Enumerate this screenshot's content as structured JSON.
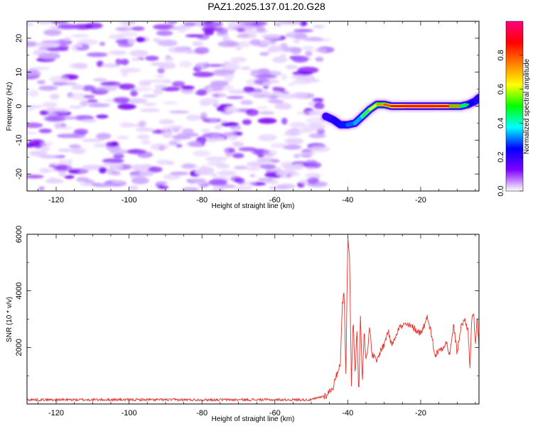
{
  "title": "PAZ1.2025.137.01.20.G28",
  "chart_data": [
    {
      "type": "heatmap",
      "xlabel": "Height of straight line (km)",
      "ylabel": "Frequency (Hz)",
      "xlim": [
        -128,
        -4
      ],
      "ylim": [
        -25,
        25
      ],
      "x_ticks": [
        -120,
        -100,
        -80,
        -60,
        -40,
        -20
      ],
      "y_ticks": [
        -20,
        -10,
        0,
        10,
        20
      ],
      "colorbar": {
        "label": "Normalized spectral amplitude",
        "range": [
          0,
          1
        ],
        "ticks": [
          0.0,
          0.2,
          0.4,
          0.6,
          0.8
        ],
        "colormap": [
          "#ffffff",
          "#7f00ff",
          "#0000ff",
          "#00ffff",
          "#00ff00",
          "#ffff00",
          "#ff8000",
          "#ff0000",
          "#ff0080"
        ]
      },
      "ridge": {
        "x": [
          -46,
          -44,
          -42,
          -40,
          -38,
          -36,
          -34,
          -32,
          -30,
          -28,
          -24,
          -20,
          -16,
          -12,
          -9,
          -7,
          -5,
          -4
        ],
        "y": [
          -3,
          -4,
          -5.5,
          -5.5,
          -5,
          -3,
          -1,
          0.5,
          0.5,
          0,
          0,
          0,
          0,
          0,
          0,
          0.5,
          1.5,
          2.5
        ],
        "amplitude": [
          0.25,
          0.3,
          0.35,
          0.4,
          0.45,
          0.5,
          0.55,
          0.7,
          0.75,
          0.85,
          0.95,
          0.95,
          0.95,
          0.9,
          0.6,
          0.4,
          0.3,
          0.3
        ]
      },
      "noise_region_xlim": [
        -128,
        -46
      ]
    },
    {
      "type": "line",
      "xlabel": "Height of straight line (km)",
      "ylabel": "SNR (10 * v/v)",
      "xlim": [
        -128,
        -4
      ],
      "ylim": [
        0,
        6000
      ],
      "x_ticks": [
        -120,
        -100,
        -80,
        -60,
        -40,
        -20
      ],
      "y_ticks": [
        2000,
        4000,
        6000
      ],
      "color": "#e8312b",
      "series": [
        {
          "x": [
            -128,
            -110,
            -90,
            -70,
            -50,
            -46,
            -44,
            -42,
            -41.5,
            -41,
            -40.5,
            -40,
            -39.5,
            -39,
            -38.5,
            -38,
            -37.5,
            -37,
            -36.5,
            -36,
            -35.5,
            -35,
            -34.5,
            -34,
            -33.5,
            -33,
            -32,
            -31,
            -30,
            -29,
            -28,
            -26,
            -24,
            -22,
            -20,
            -18,
            -16,
            -15,
            -14,
            -13,
            -12,
            -11,
            -10,
            -9,
            -8,
            -7,
            -6.5,
            -6,
            -5.5,
            -5,
            -4.5,
            -4
          ],
          "y": [
            150,
            150,
            150,
            150,
            150,
            300,
            600,
            1500,
            3500,
            4100,
            900,
            6000,
            5200,
            700,
            3000,
            1000,
            2800,
            250,
            3200,
            800,
            2700,
            1500,
            1900,
            2900,
            1800,
            1700,
            1500,
            1900,
            2100,
            2600,
            2100,
            2700,
            2800,
            2700,
            2500,
            3100,
            1700,
            1900,
            2000,
            2200,
            1700,
            2800,
            1800,
            2700,
            3000,
            2600,
            1300,
            2900,
            3300,
            2100,
            3000,
            2000
          ]
        }
      ]
    }
  ]
}
